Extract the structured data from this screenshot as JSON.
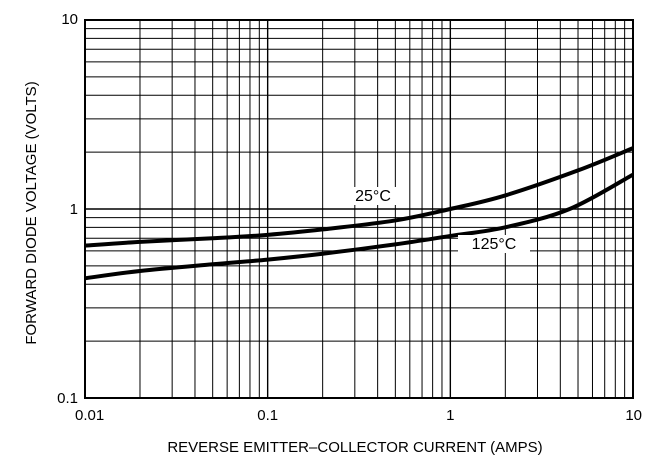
{
  "chart_data": {
    "type": "line",
    "title": "",
    "xlabel": "REVERSE EMITTER–COLLECTOR CURRENT (AMPS)",
    "ylabel": "FORWARD DIODE VOLTAGE (VOLTS)",
    "x_scale": "log",
    "y_scale": "log",
    "xlim": [
      0.01,
      10
    ],
    "ylim": [
      0.1,
      10
    ],
    "grid": true,
    "x_ticks": [
      {
        "value": 0.01,
        "label": "0.01"
      },
      {
        "value": 0.1,
        "label": "0.1"
      },
      {
        "value": 1,
        "label": "1"
      },
      {
        "value": 10,
        "label": "10"
      }
    ],
    "y_ticks": [
      {
        "value": 0.1,
        "label": "0.1"
      },
      {
        "value": 1,
        "label": "1"
      },
      {
        "value": 10,
        "label": "10"
      }
    ],
    "series": [
      {
        "name": "25°C",
        "x": [
          0.01,
          0.02,
          0.05,
          0.1,
          0.2,
          0.5,
          1,
          2,
          5,
          10
        ],
        "y": [
          0.64,
          0.67,
          0.7,
          0.73,
          0.78,
          0.87,
          1.0,
          1.18,
          1.6,
          2.1
        ]
      },
      {
        "name": "125°C",
        "x": [
          0.01,
          0.02,
          0.05,
          0.1,
          0.2,
          0.5,
          1,
          2,
          4.5,
          10
        ],
        "y": [
          0.43,
          0.47,
          0.51,
          0.54,
          0.58,
          0.65,
          0.72,
          0.8,
          1.0,
          1.52
        ]
      }
    ]
  }
}
